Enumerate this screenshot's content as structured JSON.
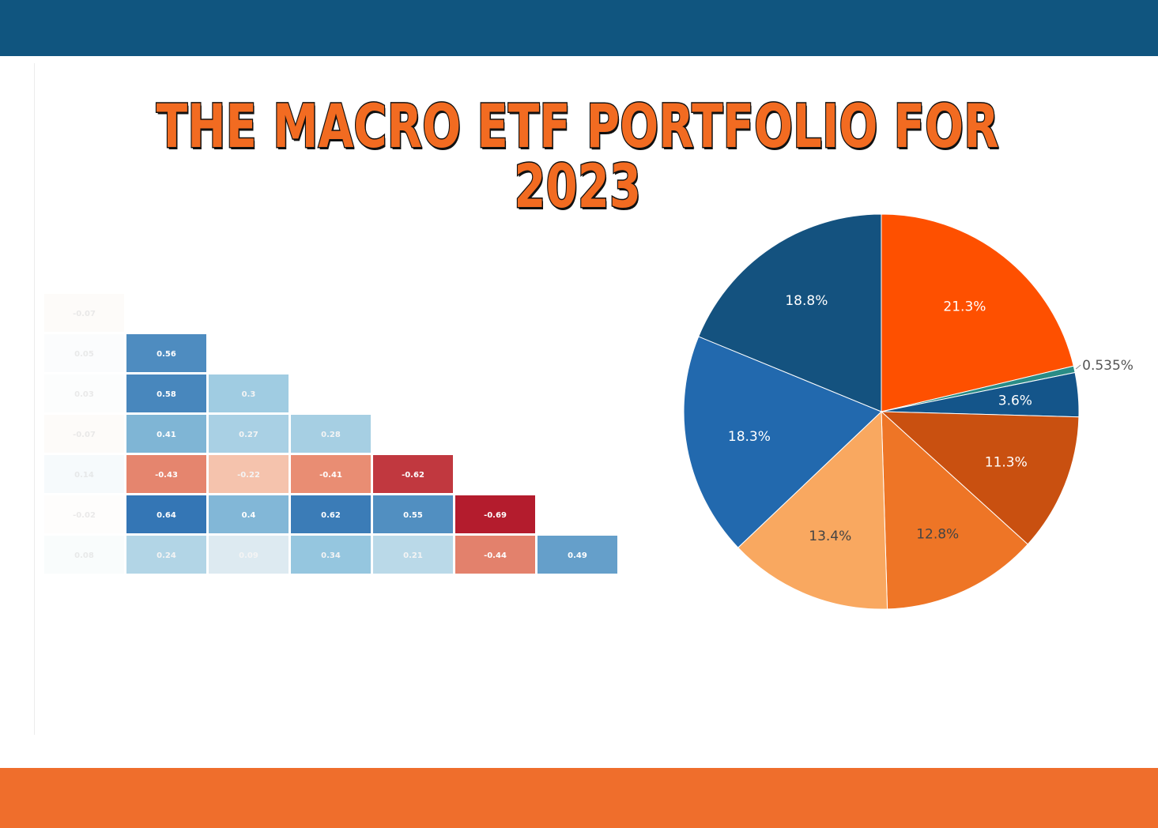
{
  "title": "THE MACRO ETF PORTFOLIO FOR 2023",
  "colors": {
    "top_bar": "#10557f",
    "bottom_bar": "#ef6e2c",
    "title_fill": "#f26b21",
    "title_outline": "#111111"
  },
  "chart_data": [
    {
      "type": "heatmap",
      "title": "",
      "shape": "lower-triangular correlation matrix",
      "colorscale": "red (negative) to blue (positive)",
      "rows": [
        [
          -0.07
        ],
        [
          0.05,
          0.56
        ],
        [
          0.03,
          0.58,
          0.3
        ],
        [
          -0.07,
          0.41,
          0.27,
          0.28
        ],
        [
          0.14,
          -0.43,
          -0.22,
          -0.41,
          -0.62
        ],
        [
          -0.02,
          0.64,
          0.4,
          0.62,
          0.55,
          -0.69
        ],
        [
          0.08,
          0.24,
          0.09,
          0.34,
          0.21,
          -0.44,
          0.49
        ]
      ],
      "labels": [
        [
          "-0.07"
        ],
        [
          "0.05",
          "0.56"
        ],
        [
          "0.03",
          "0.58",
          "0.3"
        ],
        [
          "-0.07",
          "0.41",
          "0.27",
          "0.28"
        ],
        [
          "0.14",
          "-0.43",
          "-0.22",
          "-0.41",
          "-0.62"
        ],
        [
          "-0.02",
          "0.64",
          "0.4",
          "0.62",
          "0.55",
          "-0.69"
        ],
        [
          "0.08",
          "0.24",
          "0.09",
          "0.34",
          "0.21",
          "-0.44",
          "0.49"
        ]
      ],
      "first_column_faded": true
    },
    {
      "type": "pie",
      "title": "",
      "start": "12 o'clock, clockwise",
      "slices": [
        {
          "value": 21.3,
          "label": "21.3%",
          "color": "#fe5000",
          "label_color": "#ffffff"
        },
        {
          "value": 0.535,
          "label": "0.535%",
          "color": "#2a8c86",
          "label_color": "#555555",
          "label_outside": true
        },
        {
          "value": 3.6,
          "label": "3.6%",
          "color": "#14558a",
          "label_color": "#ffffff"
        },
        {
          "value": 11.3,
          "label": "11.3%",
          "color": "#c95010",
          "label_color": "#ffffff"
        },
        {
          "value": 12.8,
          "label": "12.8%",
          "color": "#ee7526",
          "label_color": "#444444"
        },
        {
          "value": 13.4,
          "label": "13.4%",
          "color": "#f9a860",
          "label_color": "#444444"
        },
        {
          "value": 18.3,
          "label": "18.3%",
          "color": "#2269ae",
          "label_color": "#ffffff"
        },
        {
          "value": 18.8,
          "label": "18.8%",
          "color": "#14527f",
          "label_color": "#ffffff"
        }
      ]
    }
  ]
}
